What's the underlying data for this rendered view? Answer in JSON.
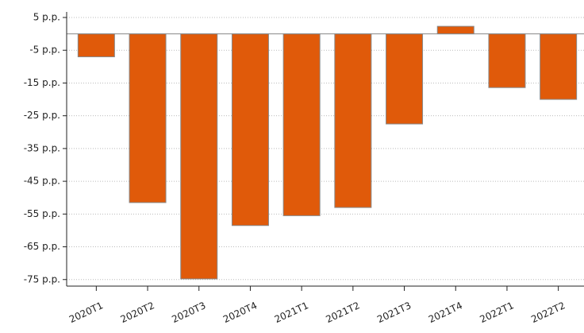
{
  "chart_data": {
    "type": "bar",
    "categories": [
      "2020T1",
      "2020T2",
      "2020T3",
      "2020T4",
      "2021T1",
      "2021T2",
      "2021T3",
      "2021T4",
      "2022T1",
      "2022T2"
    ],
    "values": [
      -7,
      -51.5,
      -74.8,
      -58.5,
      -55.5,
      -53,
      -27.5,
      2.3,
      -16.4,
      -20
    ],
    "color": "#e05a0a",
    "ylim": [
      -77,
      6.7
    ],
    "yticks": [
      {
        "value": 5,
        "label": "5 p.p."
      },
      {
        "value": -5,
        "label": "-5 p.p."
      },
      {
        "value": -15,
        "label": "-15 p.p."
      },
      {
        "value": -25,
        "label": "-25 p.p."
      },
      {
        "value": -35,
        "label": "-35 p.p."
      },
      {
        "value": -45,
        "label": "-45 p.p."
      },
      {
        "value": -55,
        "label": "-55 p.p."
      },
      {
        "value": -65,
        "label": "-65 p.p."
      },
      {
        "value": -75,
        "label": "-75 p.p."
      }
    ],
    "grid": true
  }
}
